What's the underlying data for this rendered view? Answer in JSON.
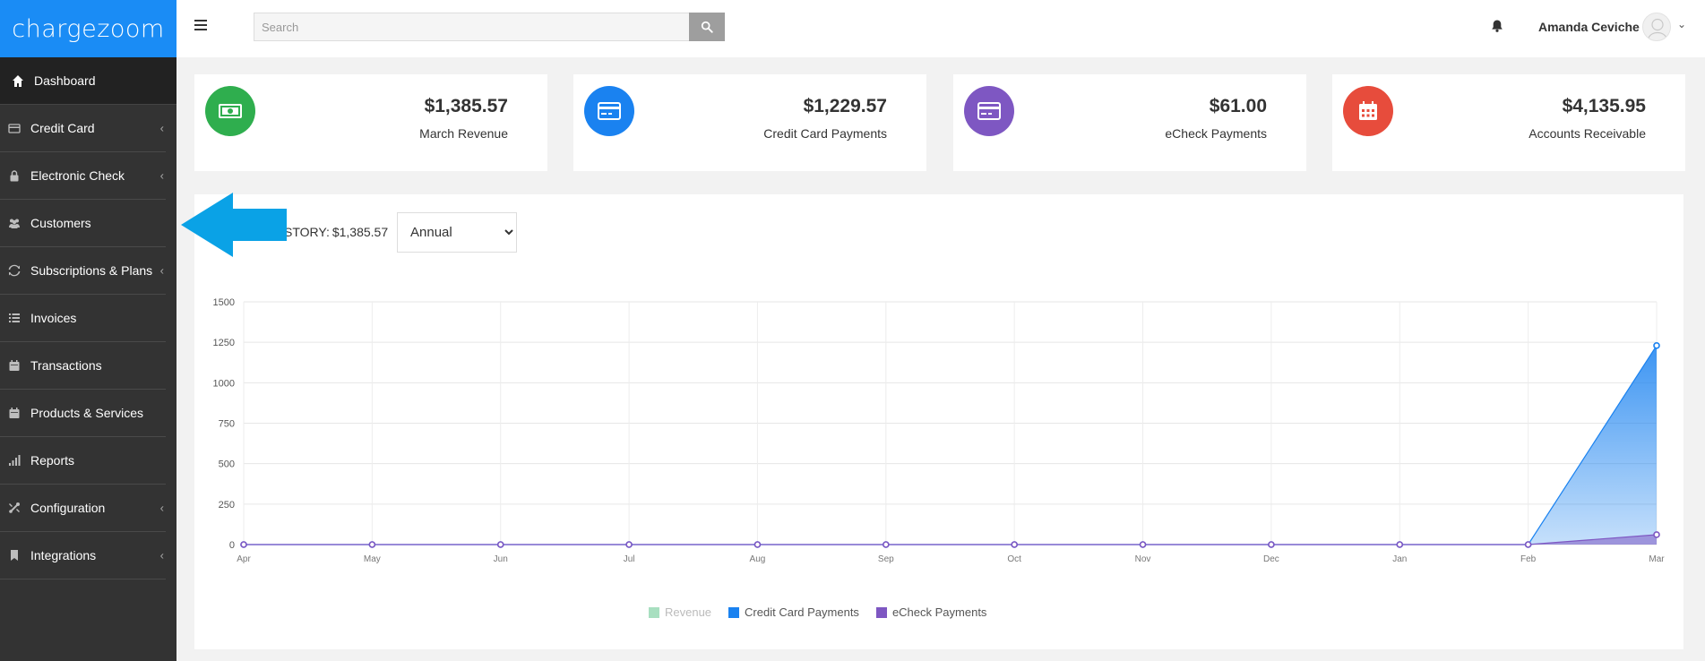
{
  "app": {
    "logo_text": "chargezoom"
  },
  "sidebar": {
    "items": [
      {
        "label": "Dashboard",
        "icon": "home-icon",
        "active": true,
        "has_submenu": false
      },
      {
        "label": "Credit Card",
        "icon": "credit-card-icon",
        "active": false,
        "has_submenu": true
      },
      {
        "label": "Electronic Check",
        "icon": "lock-icon",
        "active": false,
        "has_submenu": true
      },
      {
        "label": "Customers",
        "icon": "users-icon",
        "active": false,
        "has_submenu": false
      },
      {
        "label": "Subscriptions & Plans",
        "icon": "refresh-icon",
        "active": false,
        "has_submenu": true
      },
      {
        "label": "Invoices",
        "icon": "list-icon",
        "active": false,
        "has_submenu": false
      },
      {
        "label": "Transactions",
        "icon": "calendar-icon",
        "active": false,
        "has_submenu": false
      },
      {
        "label": "Products & Services",
        "icon": "calendar-icon",
        "active": false,
        "has_submenu": false
      },
      {
        "label": "Reports",
        "icon": "bar-chart-icon",
        "active": false,
        "has_submenu": false
      },
      {
        "label": "Configuration",
        "icon": "wrench-icon",
        "active": false,
        "has_submenu": true
      },
      {
        "label": "Integrations",
        "icon": "bookmark-icon",
        "active": false,
        "has_submenu": true
      }
    ],
    "chevron": "‹"
  },
  "topbar": {
    "search_placeholder": "Search",
    "user_name": "Amanda Ceviche",
    "user_chevron": "⌄"
  },
  "cards": [
    {
      "amount": "$1,385.57",
      "label": "March Revenue",
      "icon": "money-icon",
      "color": "#2fae4e"
    },
    {
      "amount": "$1,229.57",
      "label": "Credit Card Payments",
      "icon": "credit-card-icon",
      "color": "#1a82f0"
    },
    {
      "amount": "$61.00",
      "label": "eCheck Payments",
      "icon": "credit-card-icon",
      "color": "#7e57c2"
    },
    {
      "amount": "$4,135.95",
      "label": "Accounts Receivable",
      "icon": "calendar-icon",
      "color": "#e74c3c"
    }
  ],
  "history": {
    "label": "STORY:",
    "amount": "$1,385.57",
    "period_selected": "Annual",
    "period_options": [
      "Annual"
    ]
  },
  "colors": {
    "sidebar_bg": "#333333",
    "logo_bg": "#1a8cf5",
    "annotation_arrow": "#0aa2e6"
  },
  "chart_data": {
    "type": "area",
    "categories": [
      "Apr",
      "May",
      "Jun",
      "Jul",
      "Aug",
      "Sep",
      "Oct",
      "Nov",
      "Dec",
      "Jan",
      "Feb",
      "Mar"
    ],
    "y_ticks": [
      0,
      250,
      500,
      750,
      1000,
      1250,
      1500
    ],
    "ylim": [
      0,
      1500
    ],
    "grid": true,
    "legend_position": "bottom",
    "series": [
      {
        "name": "Revenue",
        "color": "#a8dfc0",
        "hidden": true,
        "values": [
          0,
          0,
          0,
          0,
          0,
          0,
          0,
          0,
          0,
          0,
          0,
          1385.57
        ]
      },
      {
        "name": "Credit Card Payments",
        "color": "#1a82f0",
        "hidden": false,
        "values": [
          0,
          0,
          0,
          0,
          0,
          0,
          0,
          0,
          0,
          0,
          0,
          1229.57
        ]
      },
      {
        "name": "eCheck Payments",
        "color": "#7e57c2",
        "hidden": false,
        "values": [
          0,
          0,
          0,
          0,
          0,
          0,
          0,
          0,
          0,
          0,
          0,
          61
        ]
      }
    ]
  }
}
